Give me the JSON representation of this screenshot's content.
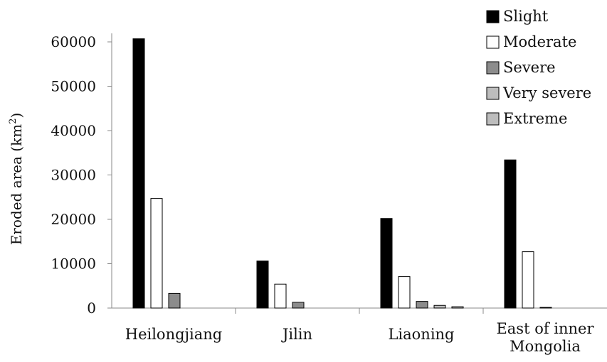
{
  "chart_data": {
    "type": "bar",
    "title": "",
    "xlabel": "",
    "ylabel": "Eroded area (km",
    "ylabel_sup": "2",
    "ylabel_close": ")",
    "ylim": [
      0,
      60000
    ],
    "yticks": [
      0,
      10000,
      20000,
      30000,
      40000,
      50000,
      60000
    ],
    "ytick_labels": [
      "0",
      "10000",
      "20000",
      "30000",
      "40000",
      "50000",
      "60000"
    ],
    "categories": [
      [
        "Heilongjiang"
      ],
      [
        "Jilin"
      ],
      [
        "Liaoning"
      ],
      [
        "East of inner",
        "Mongolia"
      ]
    ],
    "legend_position": "top-right",
    "series": [
      {
        "name": "Slight",
        "color": "#000000",
        "values": [
          60700,
          10600,
          20200,
          33400
        ]
      },
      {
        "name": "Moderate",
        "color": "#ffffff",
        "values": [
          24700,
          5400,
          7100,
          12700
        ]
      },
      {
        "name": "Severe",
        "color": "#8c8c8c",
        "values": [
          3300,
          1300,
          1500,
          150
        ]
      },
      {
        "name": "Very severe",
        "color": "#bdbdbd",
        "values": [
          0,
          0,
          600,
          0
        ]
      },
      {
        "name": "Extreme",
        "color": "#bdbdbd",
        "values": [
          0,
          0,
          300,
          0
        ]
      }
    ]
  }
}
